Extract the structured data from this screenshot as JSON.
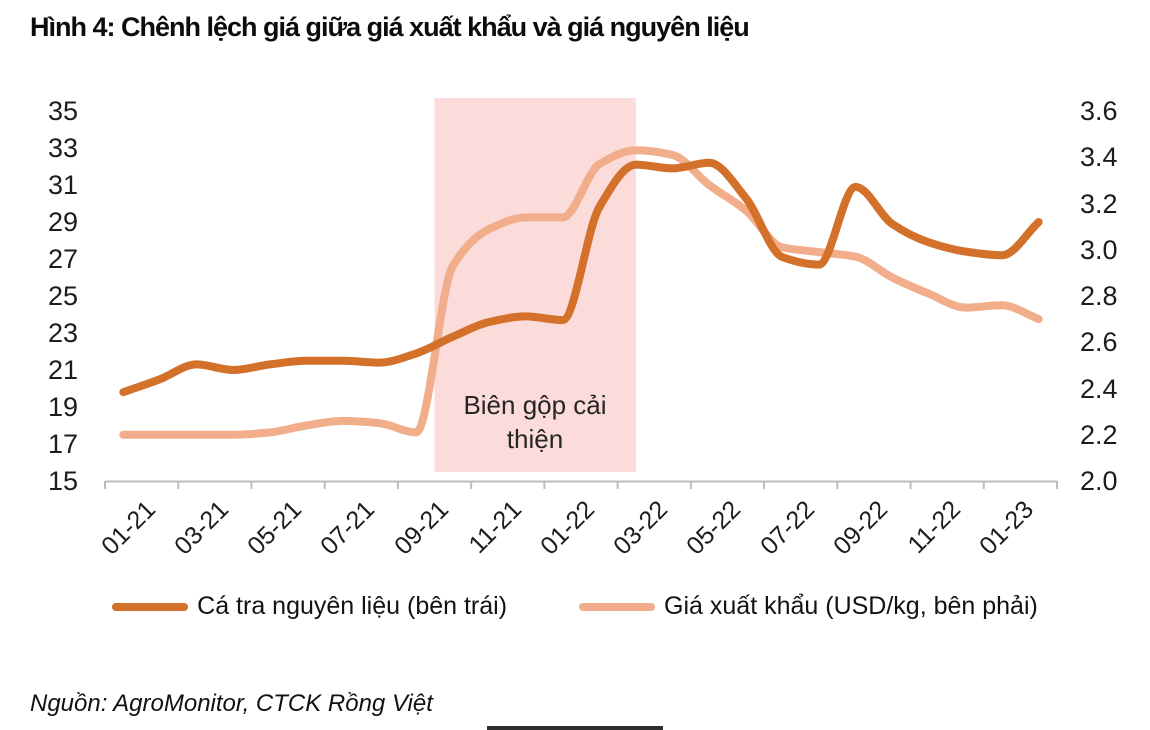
{
  "title": "Hình 4: Chênh lệch giá giữa giá xuất khẩu và giá nguyên liệu",
  "source": "Nguồn: AgroMonitor, CTCK Rồng Việt",
  "colors": {
    "raw_fish_line": "#d3702a",
    "export_price_line": "#f2ad8b",
    "highlight_region": "#fbdcda",
    "axis_line": "#bdbdbd",
    "text": "#1c1c1c"
  },
  "chart_data": {
    "type": "line",
    "x": [
      "01-21",
      "02-21",
      "03-21",
      "04-21",
      "05-21",
      "06-21",
      "07-21",
      "08-21",
      "09-21",
      "10-21",
      "11-21",
      "12-21",
      "01-22",
      "02-22",
      "03-22",
      "04-22",
      "05-22",
      "06-22",
      "07-22",
      "08-22",
      "09-22",
      "10-22",
      "11-22",
      "12-22",
      "01-23",
      "02-23"
    ],
    "x_tick_labels": [
      "01-21",
      "03-21",
      "05-21",
      "07-21",
      "09-21",
      "11-21",
      "01-22",
      "03-22",
      "05-22",
      "07-22",
      "09-22",
      "11-22",
      "01-23"
    ],
    "left_axis": {
      "min": 15,
      "max": 35,
      "ticks": [
        "35",
        "33",
        "31",
        "29",
        "27",
        "25",
        "23",
        "21",
        "19",
        "17",
        "15"
      ]
    },
    "right_axis": {
      "min": 2.0,
      "max": 3.6,
      "ticks": [
        "3.6",
        "3.4",
        "3.2",
        "3.0",
        "2.8",
        "2.6",
        "2.4",
        "2.2",
        "2.0"
      ]
    },
    "series": [
      {
        "name": "Cá tra nguyên liệu (bên trái)",
        "axis": "left",
        "color": "#d3702a",
        "values": [
          19.8,
          20.5,
          21.3,
          21.0,
          21.3,
          21.5,
          21.5,
          21.4,
          21.9,
          22.8,
          23.6,
          23.9,
          23.7,
          29.8,
          32.1,
          31.9,
          32.2,
          30.3,
          27.1,
          26.7,
          30.9,
          28.9,
          27.9,
          27.4,
          27.2,
          29.0
        ]
      },
      {
        "name": "Giá xuất khẩu (USD/kg, bên phải)",
        "axis": "right",
        "color": "#f2ad8b",
        "values": [
          2.2,
          2.2,
          2.2,
          2.2,
          2.21,
          2.24,
          2.26,
          2.25,
          2.21,
          2.93,
          3.09,
          3.14,
          3.14,
          3.37,
          3.43,
          3.41,
          3.28,
          3.17,
          3.01,
          2.99,
          2.97,
          2.88,
          2.81,
          2.75,
          2.76,
          2.7
        ]
      }
    ],
    "highlight_region": {
      "label": "Biên gộp cải thiện",
      "from": "10-21",
      "to": "03-22",
      "color": "#fbdcda"
    },
    "legend_position": "bottom",
    "grid": false
  }
}
